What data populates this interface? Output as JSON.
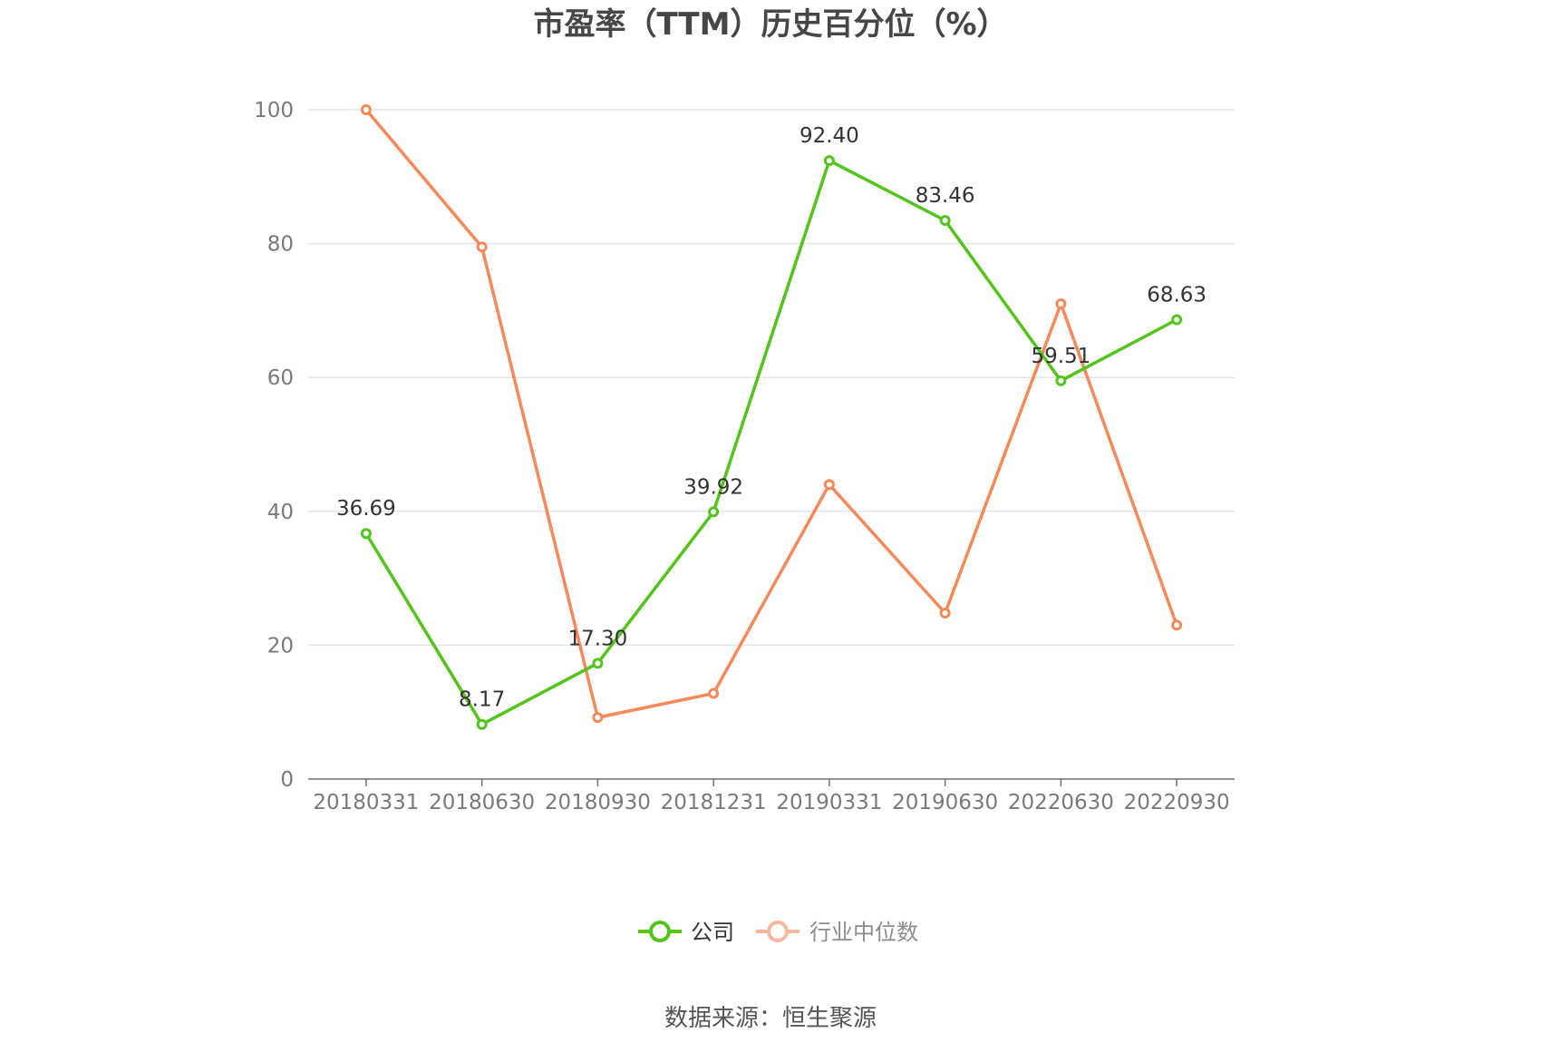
{
  "chart_data": {
    "type": "line",
    "title": "市盈率（TTM）历史百分位（%）",
    "categories": [
      "20180331",
      "20180630",
      "20180930",
      "20181231",
      "20190331",
      "20190630",
      "20220630",
      "20220930"
    ],
    "ylim": [
      0,
      100
    ],
    "y_ticks": [
      0,
      20,
      40,
      60,
      80,
      100
    ],
    "grid": true,
    "legend_position": "bottom",
    "series": [
      {
        "name": "公司",
        "color": "#52c41a",
        "values": [
          36.69,
          8.17,
          17.3,
          39.92,
          92.4,
          83.46,
          59.51,
          68.63
        ],
        "data_labels": [
          "36.69",
          "8.17",
          "17.30",
          "39.92",
          "92.40",
          "83.46",
          "59.51",
          "68.63"
        ]
      },
      {
        "name": "行业中位数",
        "color": "#f5895a",
        "values": [
          100,
          79.5,
          9.2,
          12.8,
          44.0,
          24.8,
          71.0,
          23.0
        ]
      }
    ]
  },
  "legend": {
    "company": "公司",
    "industry": "行业中位数",
    "inactive_text_color": "#8c8c8c"
  },
  "source": "数据来源：恒生聚源"
}
